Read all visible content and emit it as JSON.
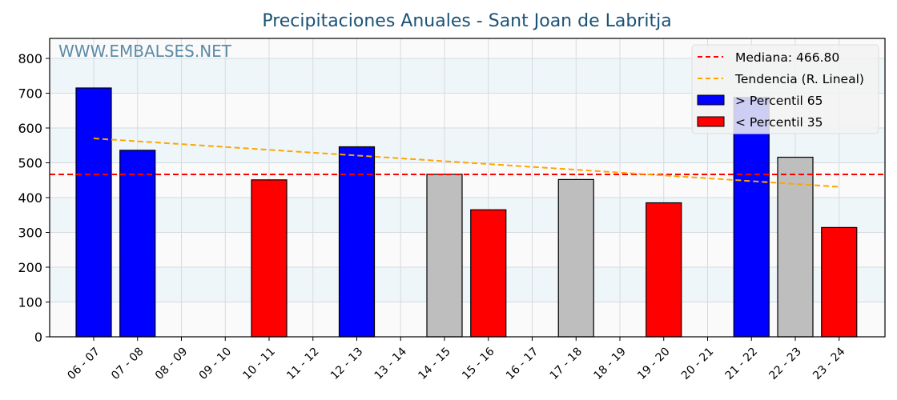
{
  "chart_data": {
    "type": "bar",
    "title": "Precipitaciones Anuales - Sant Joan de Labritja",
    "xlabel": "",
    "ylabel": "",
    "ylim": [
      0,
      860
    ],
    "yticks": [
      0,
      100,
      200,
      300,
      400,
      500,
      600,
      700,
      800
    ],
    "grid": true,
    "legend_position": "upper right",
    "watermark": "WWW.EMBALSES.NET",
    "categories": [
      "06 - 07",
      "07 - 08",
      "08 - 09",
      "09 - 10",
      "10 - 11",
      "11 - 12",
      "12 - 13",
      "13 - 14",
      "14 - 15",
      "15 - 16",
      "16 - 17",
      "17 - 18",
      "18 - 19",
      "19 - 20",
      "20 - 21",
      "21 - 22",
      "22 - 23",
      "23 - 24"
    ],
    "values": [
      715,
      536,
      null,
      null,
      451,
      null,
      546,
      null,
      467,
      365,
      null,
      452,
      null,
      385,
      null,
      688,
      516,
      314
    ],
    "bar_classes": [
      "high",
      "high",
      null,
      null,
      "low",
      null,
      "high",
      null,
      "mid",
      "low",
      null,
      "mid",
      null,
      "low",
      null,
      "high",
      "mid",
      "low"
    ],
    "colors": {
      "high": "#0000ff",
      "low": "#ff0000",
      "mid": "#bebebe",
      "median": "#ff0000",
      "trend": "#ffa500",
      "title": "#1a5276"
    },
    "median": 466.8,
    "trend": {
      "start": {
        "category": "06 - 07",
        "value": 570
      },
      "end": {
        "category": "23 - 24",
        "value": 431
      }
    },
    "legend": [
      {
        "label": "Mediana: 466.80",
        "type": "dashed-line",
        "color": "#ff0000"
      },
      {
        "label": "Tendencia (R. Lineal)",
        "type": "dashed-line",
        "color": "#ffa500"
      },
      {
        "label": "> Percentil 65",
        "type": "patch",
        "color": "#0000ff"
      },
      {
        "label": "< Percentil 35",
        "type": "patch",
        "color": "#ff0000"
      }
    ]
  }
}
